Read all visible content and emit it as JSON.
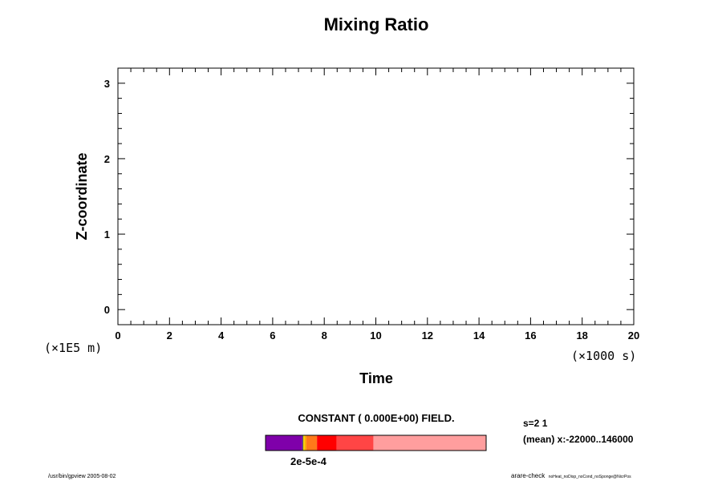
{
  "chart_data": {
    "type": "heatmap",
    "title": "Mixing Ratio",
    "xlabel": "Time",
    "ylabel": "Z-coordinate",
    "x_unit": "(×1000 s)",
    "y_unit": "(×1E5 m)",
    "xlim": [
      0,
      20
    ],
    "ylim": [
      -0.2,
      3.2
    ],
    "x_ticks": [
      "0",
      "2",
      "4",
      "6",
      "8",
      "10",
      "12",
      "14",
      "16",
      "18",
      "20"
    ],
    "y_ticks": [
      "0",
      "1",
      "2",
      "3"
    ],
    "field_message": "CONSTANT ( 0.000E+00) FIELD.",
    "colorbar": {
      "segments": [
        {
          "color": "#7f00aa",
          "width": 45
        },
        {
          "color": "#222266",
          "width": 1
        },
        {
          "color": "#f5d000",
          "width": 2
        },
        {
          "color": "#ffaa00",
          "width": 2
        },
        {
          "color": "#ff7a1a",
          "width": 13
        },
        {
          "color": "#ff0000",
          "width": 24
        },
        {
          "color": "#ff4545",
          "width": 45
        },
        {
          "color": "#ff9e9e",
          "width": 138
        }
      ],
      "label": "2e-5e-4"
    },
    "notes": [
      "s=2 1",
      "(mean) x:-22000..146000"
    ],
    "footer_left": "/usr/bin/gpview 2005-08-02",
    "footer_right_main": "arare-check",
    "footer_right_small": "noHeat_noDisp_noCond_noSponge@NicrPos"
  }
}
